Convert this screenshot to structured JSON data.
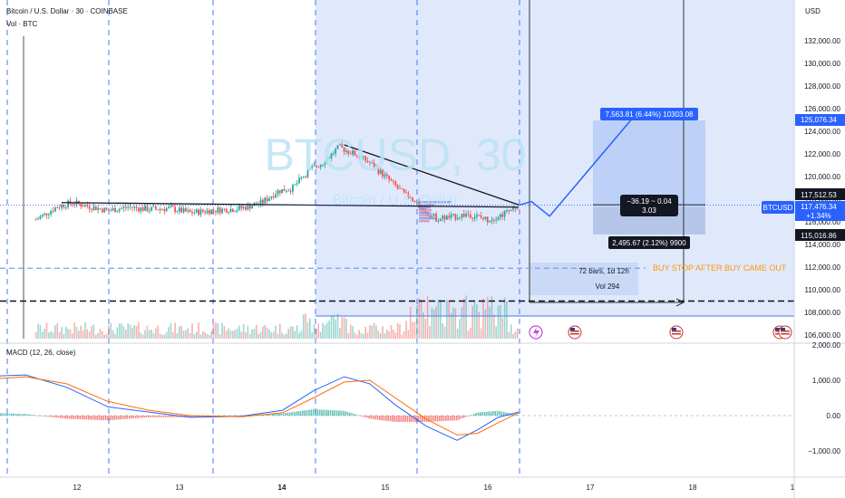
{
  "header": {
    "title": "Bitcoin / U.S. Dollar · 30 · COINBASE",
    "vol_label": "Vol · BTC"
  },
  "watermark": {
    "main": "BTCUSD, 30",
    "sub": "Bitcoin / U.S. Dollar"
  },
  "price_axis": {
    "currency": "USD",
    "ticks": [
      "132,000.00",
      "130,000.00",
      "128,000.00",
      "126,000.00",
      "124,000.00",
      "122,000.00",
      "120,000.00",
      "118,000.00",
      "116,000.00",
      "114,000.00",
      "112,000.00",
      "110,000.00",
      "108,000.00",
      "106,000.00"
    ]
  },
  "price_tags": {
    "target": "125,076.34",
    "upper": "117,512.53",
    "symbol": "BTCUSD",
    "current": "117,476.34",
    "change": "+1.34%",
    "lower": "115,016.86"
  },
  "measure": {
    "top": "7,563.81 (6.44%) 10303.08",
    "middle_top": "−36.19 ~ 0.04",
    "middle_bottom": "3.03",
    "bottom": "2,495.67 (2.12%) 9900"
  },
  "range_info": {
    "bars": "72 bars, 1d 12h",
    "vol": "Vol 294"
  },
  "annotation": "BUY STOP AFTER BUY CAME OUT",
  "macd": {
    "label": "MACD (12, 26, close)",
    "ticks": [
      "2,000.00",
      "1,000.00",
      "0.00",
      "−1,000.00"
    ]
  },
  "time_axis": {
    "labels": [
      {
        "text": "12",
        "bold": false
      },
      {
        "text": "13",
        "bold": false
      },
      {
        "text": "14",
        "bold": true
      },
      {
        "text": "15",
        "bold": false
      },
      {
        "text": "16",
        "bold": false
      },
      {
        "text": "17",
        "bold": false
      },
      {
        "text": "18",
        "bold": false
      },
      {
        "text": "1",
        "bold": false
      }
    ]
  },
  "colors": {
    "up": "#26a69a",
    "down": "#ef5350",
    "accent": "#2962ff",
    "range_fill": "#d6e2fb",
    "annotation": "#ff9800",
    "macd_line": "#2962ff",
    "signal_line": "#ff6d00"
  },
  "chart_data": {
    "type": "candlestick",
    "symbol": "BTCUSD",
    "interval": "30",
    "exchange": "COINBASE",
    "x_axis_days": [
      "12",
      "13",
      "14",
      "15",
      "16",
      "17",
      "18",
      "1"
    ],
    "y_range": [
      106000,
      133000
    ],
    "close_path": [
      {
        "day": 11.6,
        "price": 116200
      },
      {
        "day": 11.8,
        "price": 117300
      },
      {
        "day": 11.95,
        "price": 117700
      },
      {
        "day": 12.1,
        "price": 117400
      },
      {
        "day": 12.3,
        "price": 117000
      },
      {
        "day": 12.5,
        "price": 117300
      },
      {
        "day": 12.7,
        "price": 117100
      },
      {
        "day": 12.9,
        "price": 117200
      },
      {
        "day": 13.1,
        "price": 116800
      },
      {
        "day": 13.3,
        "price": 117000
      },
      {
        "day": 13.6,
        "price": 117200
      },
      {
        "day": 13.8,
        "price": 117700
      },
      {
        "day": 13.95,
        "price": 118700
      },
      {
        "day": 14.1,
        "price": 119000
      },
      {
        "day": 14.25,
        "price": 120500
      },
      {
        "day": 14.4,
        "price": 121300
      },
      {
        "day": 14.55,
        "price": 122600
      },
      {
        "day": 14.7,
        "price": 122000
      },
      {
        "day": 14.85,
        "price": 121200
      },
      {
        "day": 15.0,
        "price": 120000
      },
      {
        "day": 15.2,
        "price": 118300
      },
      {
        "day": 15.35,
        "price": 117200
      },
      {
        "day": 15.5,
        "price": 116300
      },
      {
        "day": 15.65,
        "price": 116400
      },
      {
        "day": 15.8,
        "price": 116700
      },
      {
        "day": 16.0,
        "price": 116200
      },
      {
        "day": 16.15,
        "price": 116700
      },
      {
        "day": 16.3,
        "price": 117476
      }
    ],
    "current_price": 117476.34,
    "projection": {
      "from_price": 117476.34,
      "dip_price": 116500,
      "target_price": 125076.34,
      "target_change": "6.44%"
    },
    "measure_box": {
      "top": 125076.34,
      "entry": 117512.53,
      "stop": 115016.86
    },
    "levels": {
      "buy_stop": 111900,
      "dashed_black": 109000
    },
    "trendlines": [
      {
        "from": {
          "day": 11.85,
          "price": 117700
        },
        "to": {
          "day": 16.3,
          "price": 117300
        }
      },
      {
        "from": {
          "day": 14.6,
          "price": 122800
        },
        "to": {
          "day": 16.3,
          "price": 117500
        }
      }
    ],
    "macd": {
      "params": "12, 26, close",
      "y_range": [
        -1500,
        2000
      ],
      "macd_line": [
        {
          "day": 11.0,
          "value": 1100
        },
        {
          "day": 11.5,
          "value": 1150
        },
        {
          "day": 11.9,
          "value": 800
        },
        {
          "day": 12.3,
          "value": 250
        },
        {
          "day": 12.7,
          "value": 100
        },
        {
          "day": 13.1,
          "value": -50
        },
        {
          "day": 13.6,
          "value": -20
        },
        {
          "day": 14.0,
          "value": 150
        },
        {
          "day": 14.3,
          "value": 700
        },
        {
          "day": 14.6,
          "value": 1100
        },
        {
          "day": 14.85,
          "value": 900
        },
        {
          "day": 15.1,
          "value": 300
        },
        {
          "day": 15.4,
          "value": -300
        },
        {
          "day": 15.7,
          "value": -700
        },
        {
          "day": 15.9,
          "value": -400
        },
        {
          "day": 16.1,
          "value": -50
        },
        {
          "day": 16.3,
          "value": 100
        }
      ],
      "signal_line": [
        {
          "day": 11.0,
          "value": 1000
        },
        {
          "day": 11.5,
          "value": 1100
        },
        {
          "day": 11.9,
          "value": 900
        },
        {
          "day": 12.3,
          "value": 400
        },
        {
          "day": 12.7,
          "value": 150
        },
        {
          "day": 13.1,
          "value": 0
        },
        {
          "day": 13.6,
          "value": -30
        },
        {
          "day": 14.0,
          "value": 80
        },
        {
          "day": 14.3,
          "value": 500
        },
        {
          "day": 14.6,
          "value": 950
        },
        {
          "day": 14.85,
          "value": 1000
        },
        {
          "day": 15.1,
          "value": 500
        },
        {
          "day": 15.4,
          "value": -100
        },
        {
          "day": 15.7,
          "value": -550
        },
        {
          "day": 15.9,
          "value": -500
        },
        {
          "day": 16.1,
          "value": -200
        },
        {
          "day": 16.3,
          "value": 80
        }
      ]
    }
  }
}
